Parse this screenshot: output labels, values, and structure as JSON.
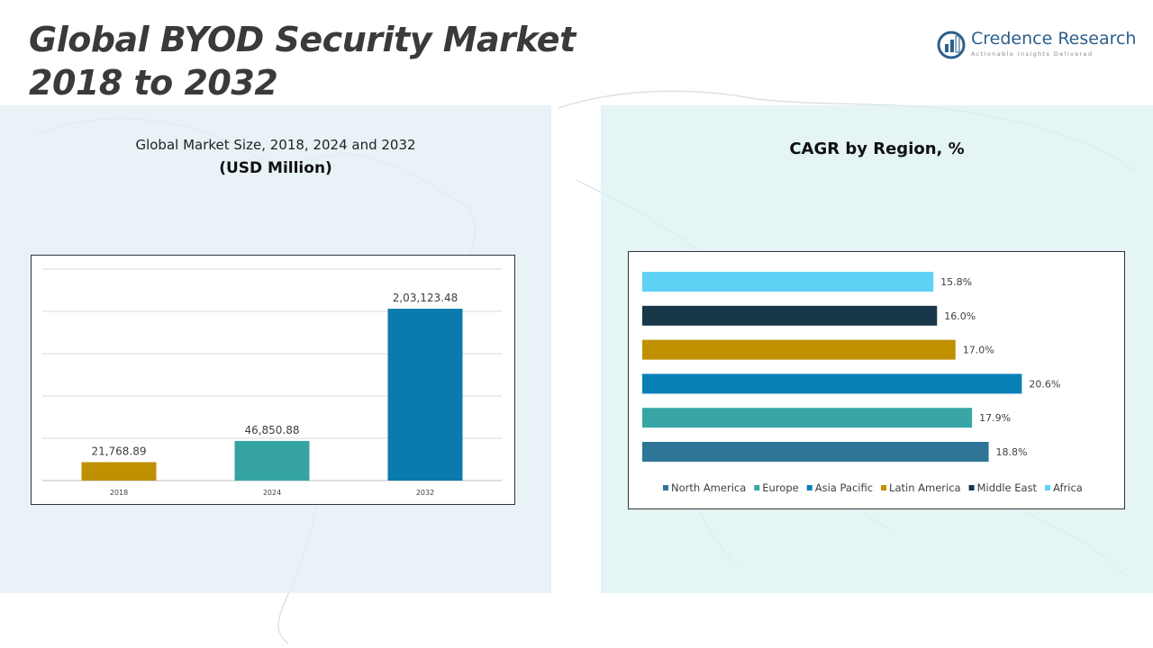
{
  "header": {
    "title_line1": "Global BYOD Security Market",
    "title_line2": "2018 to 2032"
  },
  "logo": {
    "name": "Credence Research",
    "tagline": "Actionable Insights Delivered",
    "icon": "credence-logo-icon"
  },
  "left_panel": {
    "subtitle": "Global Market Size, 2018, 2024 and 2032",
    "unit": "(USD Million)"
  },
  "right_panel": {
    "title": "CAGR by Region, %"
  },
  "colors": {
    "2018": "#BF9000",
    "2024": "#36A3A3",
    "2032": "#0B7BAE",
    "north_america": "#2E7597",
    "europe": "#38A6A6",
    "asia_pacific": "#0781B5",
    "latin_america": "#BF9000",
    "middle_east": "#18384A",
    "africa": "#5FD1F5"
  },
  "chart_data": [
    {
      "type": "bar",
      "title": "Global Market Size, 2018, 2024 and 2032",
      "ylabel": "USD Million",
      "categories": [
        "2018",
        "2024",
        "2032"
      ],
      "values": [
        21768.89,
        46850.88,
        203123.48
      ],
      "labels": [
        "21,768.89",
        "46,850.88",
        "2,03,123.48"
      ],
      "ylim": [
        0,
        250000
      ],
      "grid": true
    },
    {
      "type": "bar",
      "orientation": "horizontal",
      "title": "CAGR by Region, %",
      "categories": [
        "North America",
        "Europe",
        "Asia Pacific",
        "Latin America",
        "Middle East",
        "Africa"
      ],
      "values": [
        18.8,
        17.9,
        20.6,
        17.0,
        16.0,
        15.8
      ],
      "labels": [
        "18.8%",
        "17.9%",
        "20.6%",
        "17.0%",
        "16.0%",
        "15.8%"
      ],
      "xlim": [
        0,
        22
      ],
      "legend": "bottom"
    }
  ]
}
